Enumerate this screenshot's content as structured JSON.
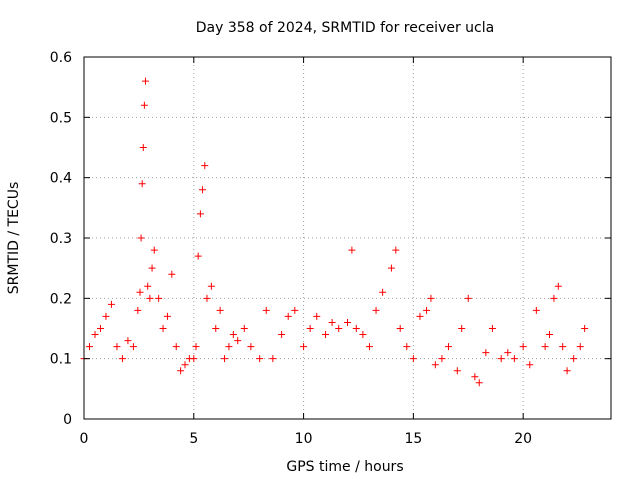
{
  "chart_data": {
    "type": "scatter",
    "title": "Day 358 of 2024, SRMTID for receiver ucla",
    "xlabel": "GPS time / hours",
    "ylabel": "SRMTID / TECUs",
    "xlim": [
      0,
      24
    ],
    "ylim": [
      0,
      0.6
    ],
    "xticks": [
      0,
      5,
      10,
      15,
      20
    ],
    "xtick_labels": [
      "0",
      "5",
      "10",
      "15",
      "20"
    ],
    "yticks": [
      0,
      0.1,
      0.2,
      0.3,
      0.4,
      0.5,
      0.6
    ],
    "ytick_labels": [
      "0",
      "0.1",
      "0.2",
      "0.3",
      "0.4",
      "0.5",
      "0.6"
    ],
    "grid": true,
    "marker": "+",
    "color": "#ff0000",
    "series": [
      {
        "name": "SRMTID",
        "x": [
          0.0,
          0.25,
          0.5,
          0.75,
          1.0,
          1.25,
          1.5,
          1.75,
          2.0,
          2.25,
          2.45,
          2.55,
          2.6,
          2.65,
          2.7,
          2.75,
          2.8,
          2.9,
          3.0,
          3.1,
          3.2,
          3.4,
          3.6,
          3.8,
          4.0,
          4.2,
          4.4,
          4.6,
          4.8,
          5.0,
          5.1,
          5.2,
          5.3,
          5.4,
          5.5,
          5.6,
          5.8,
          6.0,
          6.2,
          6.4,
          6.6,
          6.8,
          7.0,
          7.3,
          7.6,
          8.0,
          8.3,
          8.6,
          9.0,
          9.3,
          9.6,
          10.0,
          10.3,
          10.6,
          11.0,
          11.3,
          11.6,
          12.0,
          12.2,
          12.4,
          12.7,
          13.0,
          13.3,
          13.6,
          14.0,
          14.2,
          14.4,
          14.7,
          15.0,
          15.3,
          15.6,
          15.8,
          16.0,
          16.3,
          16.6,
          17.0,
          17.2,
          17.5,
          17.8,
          18.0,
          18.3,
          18.6,
          19.0,
          19.3,
          19.6,
          20.0,
          20.3,
          20.6,
          21.0,
          21.2,
          21.4,
          21.6,
          21.8,
          22.0,
          22.3,
          22.6,
          22.8
        ],
        "y": [
          0.1,
          0.12,
          0.14,
          0.15,
          0.17,
          0.19,
          0.12,
          0.1,
          0.13,
          0.12,
          0.18,
          0.21,
          0.3,
          0.39,
          0.45,
          0.52,
          0.56,
          0.22,
          0.2,
          0.25,
          0.28,
          0.2,
          0.15,
          0.17,
          0.24,
          0.12,
          0.08,
          0.09,
          0.1,
          0.1,
          0.12,
          0.27,
          0.34,
          0.38,
          0.42,
          0.2,
          0.22,
          0.15,
          0.18,
          0.1,
          0.12,
          0.14,
          0.13,
          0.15,
          0.12,
          0.1,
          0.18,
          0.1,
          0.14,
          0.17,
          0.18,
          0.12,
          0.15,
          0.17,
          0.14,
          0.16,
          0.15,
          0.16,
          0.28,
          0.15,
          0.14,
          0.12,
          0.18,
          0.21,
          0.25,
          0.28,
          0.15,
          0.12,
          0.1,
          0.17,
          0.18,
          0.2,
          0.09,
          0.1,
          0.12,
          0.08,
          0.15,
          0.2,
          0.07,
          0.06,
          0.11,
          0.15,
          0.1,
          0.11,
          0.1,
          0.12,
          0.09,
          0.18,
          0.12,
          0.14,
          0.2,
          0.22,
          0.12,
          0.08,
          0.1,
          0.12,
          0.15
        ]
      }
    ]
  }
}
